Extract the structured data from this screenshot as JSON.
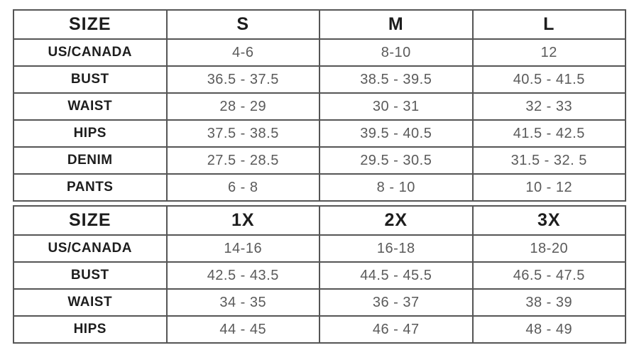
{
  "page": {
    "background": "#ffffff"
  },
  "colors": {
    "grid_border": "#555555",
    "header_text": "#1d1d1d",
    "label_text": "#1d1d1d",
    "value_text": "#5a5a5a"
  },
  "chart_data": [
    {
      "type": "table",
      "name": "regular-sizes",
      "columns": [
        "SIZE",
        "S",
        "M",
        "L"
      ],
      "rows": [
        {
          "label": "US/CANADA",
          "values": [
            "4-6",
            "8-10",
            "12"
          ]
        },
        {
          "label": "BUST",
          "values": [
            "36.5 - 37.5",
            "38.5 - 39.5",
            "40.5 - 41.5"
          ]
        },
        {
          "label": "WAIST",
          "values": [
            "28 - 29",
            "30 - 31",
            "32 - 33"
          ]
        },
        {
          "label": "HIPS",
          "values": [
            "37.5 - 38.5",
            "39.5 - 40.5",
            "41.5 - 42.5"
          ]
        },
        {
          "label": "DENIM",
          "values": [
            "27.5 - 28.5",
            "29.5 - 30.5",
            "31.5 - 32. 5"
          ]
        },
        {
          "label": "PANTS",
          "values": [
            "6 - 8",
            "8 - 10",
            "10 - 12"
          ]
        }
      ]
    },
    {
      "type": "table",
      "name": "plus-sizes",
      "columns": [
        "SIZE",
        "1X",
        "2X",
        "3X"
      ],
      "rows": [
        {
          "label": "US/CANADA",
          "values": [
            "14-16",
            "16-18",
            "18-20"
          ]
        },
        {
          "label": "BUST",
          "values": [
            "42.5 - 43.5",
            "44.5 - 45.5",
            "46.5 - 47.5"
          ]
        },
        {
          "label": "WAIST",
          "values": [
            "34 - 35",
            "36 - 37",
            "38 - 39"
          ]
        },
        {
          "label": "HIPS",
          "values": [
            "44 - 45",
            "46 - 47",
            "48 - 49"
          ]
        }
      ]
    }
  ]
}
